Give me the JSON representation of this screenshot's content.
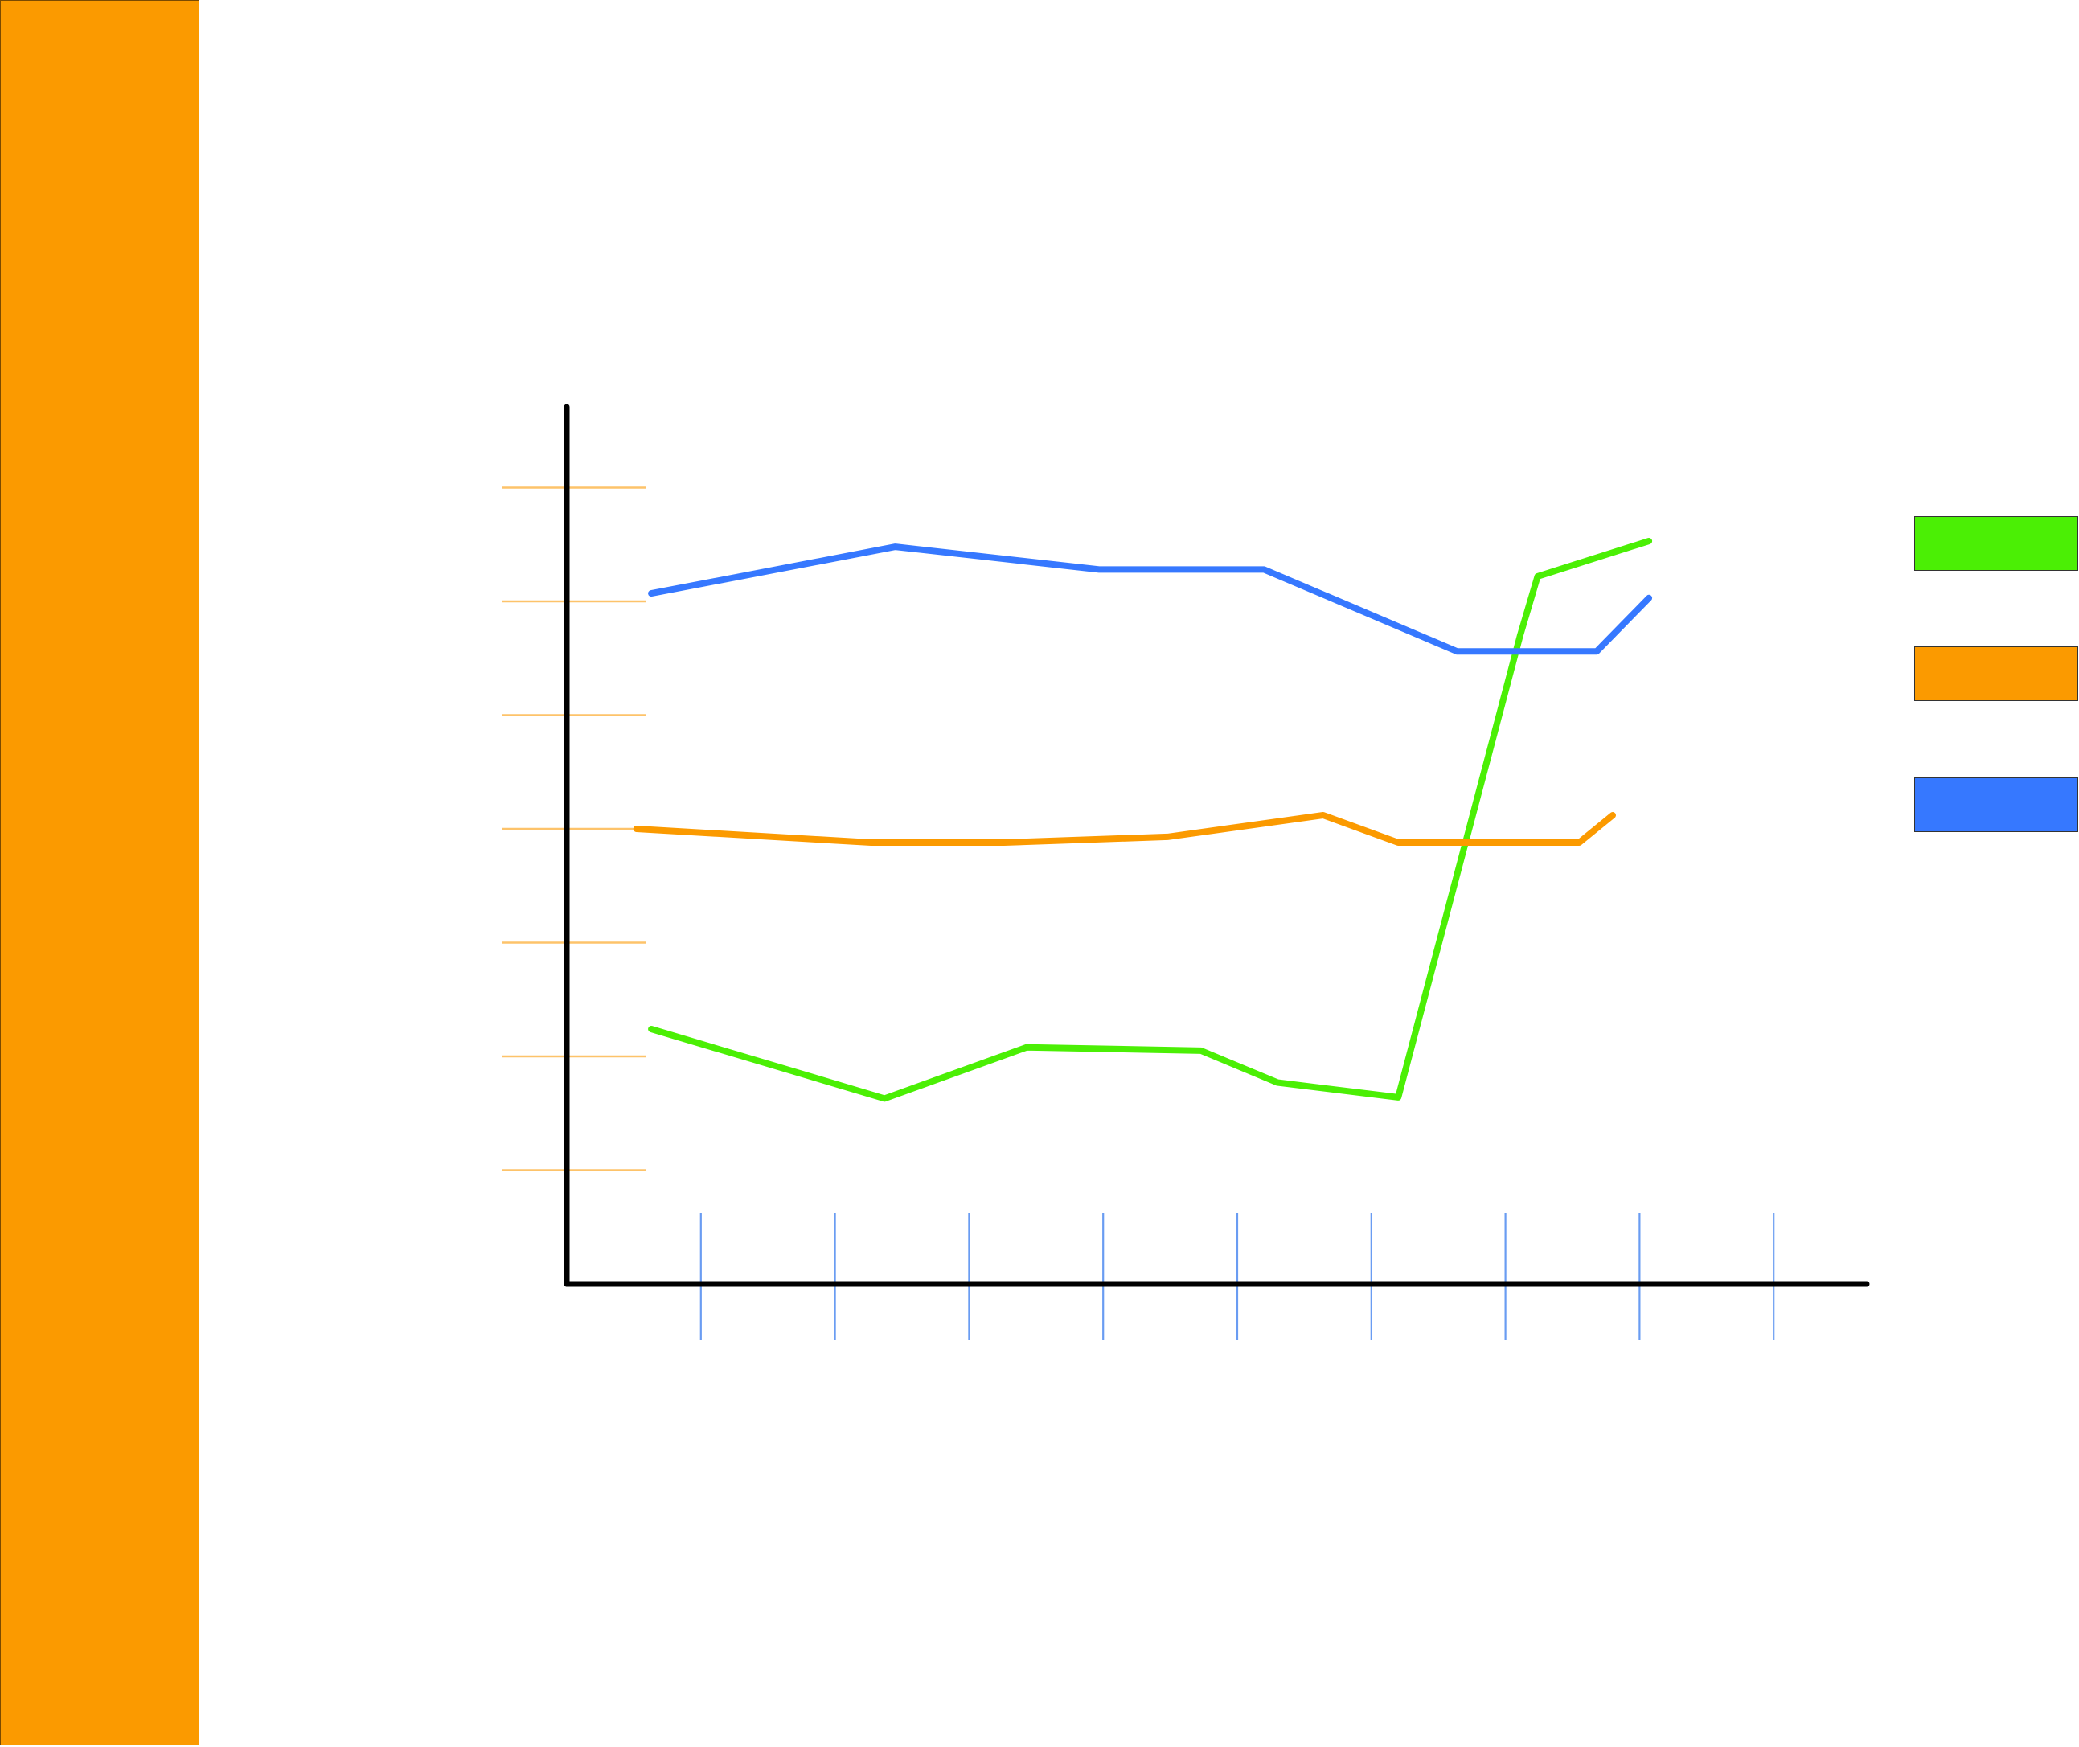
{
  "sidebar": {
    "color": "#FB9A00"
  },
  "chart_data": {
    "type": "line",
    "title": "",
    "xlabel": "",
    "ylabel": "",
    "x": [
      1,
      2,
      3,
      4,
      5,
      6,
      7,
      8,
      9
    ],
    "xlim": [
      0,
      9.5
    ],
    "ylim": [
      0,
      7.7
    ],
    "grid": false,
    "legend_placement": "right",
    "y_tick_values": [
      1,
      2,
      3,
      4,
      5,
      6,
      7
    ],
    "series": [
      {
        "color": "#4BEF05",
        "points": [
          [
            0.63,
            2.24
          ],
          [
            2.37,
            1.63
          ],
          [
            3.43,
            2.08
          ],
          [
            4.73,
            2.05
          ],
          [
            5.3,
            1.77
          ],
          [
            6.2,
            1.64
          ],
          [
            7.11,
            5.7
          ],
          [
            7.24,
            6.22
          ],
          [
            8.07,
            6.53
          ]
        ]
      },
      {
        "color": "#FB9A00",
        "points": [
          [
            0.52,
            4.0
          ],
          [
            2.27,
            3.88
          ],
          [
            3.26,
            3.88
          ],
          [
            4.48,
            3.93
          ],
          [
            5.64,
            4.12
          ],
          [
            6.2,
            3.88
          ],
          [
            7.55,
            3.88
          ],
          [
            7.8,
            4.12
          ]
        ]
      },
      {
        "color": "#3678FF",
        "points": [
          [
            0.63,
            6.07
          ],
          [
            2.45,
            6.48
          ],
          [
            3.97,
            6.28
          ],
          [
            5.2,
            6.28
          ],
          [
            6.64,
            5.56
          ],
          [
            7.68,
            5.56
          ],
          [
            8.07,
            6.03
          ]
        ]
      }
    ]
  }
}
